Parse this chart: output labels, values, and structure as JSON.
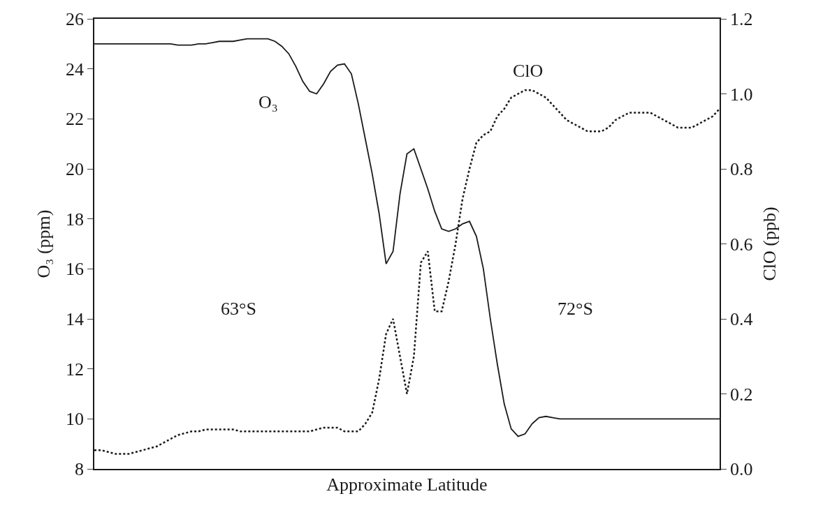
{
  "chart_data": {
    "type": "line",
    "xlabel": "Approximate Latitude",
    "ylabel": "O₃ (ppm)",
    "y2label": "ClO (ppb)",
    "categories": [
      null,
      null,
      null,
      null,
      null,
      null,
      null,
      null,
      null,
      null,
      null,
      null,
      null,
      null,
      null,
      null,
      null,
      null,
      null,
      null,
      null,
      null,
      null,
      null,
      null,
      null,
      null,
      null,
      null,
      null,
      null,
      null,
      null,
      null,
      null,
      null,
      null,
      null,
      null,
      null,
      null,
      null,
      null,
      null,
      null,
      null,
      null,
      null,
      null,
      null,
      null,
      null,
      null,
      null,
      null,
      null,
      null,
      null,
      null,
      null,
      null,
      null,
      null,
      null,
      null,
      null,
      null,
      null,
      null,
      null,
      null,
      null,
      null,
      null,
      null,
      null,
      null,
      null,
      null,
      null,
      null,
      null,
      null,
      null,
      null,
      null,
      null,
      null,
      null,
      null,
      null
    ],
    "series": [
      {
        "name": "O₃",
        "color": "#1a1a1a",
        "line_style": "solid",
        "values": [
          25.0,
          25.0,
          25.0,
          25.0,
          25.0,
          25.0,
          25.0,
          25.0,
          25.0,
          25.0,
          25.0,
          25.0,
          24.95,
          24.95,
          24.95,
          25.0,
          25.0,
          25.05,
          25.1,
          25.1,
          25.1,
          25.15,
          25.2,
          25.2,
          25.2,
          25.2,
          25.1,
          24.9,
          24.6,
          24.1,
          23.5,
          23.1,
          23.0,
          23.4,
          23.9,
          24.15,
          24.2,
          23.8,
          22.6,
          21.2,
          19.8,
          18.2,
          16.2,
          16.7,
          19.0,
          20.6,
          20.8,
          20.0,
          19.2,
          18.3,
          17.6,
          17.5,
          17.6,
          17.8,
          17.9,
          17.3,
          16.0,
          14.0,
          12.2,
          10.6,
          9.6,
          9.3,
          9.4,
          9.8,
          10.05,
          10.1,
          10.05,
          10.0,
          10.0,
          10.0,
          10.0,
          10.0,
          10.0,
          10.0,
          10.0,
          10.0,
          10.0,
          10.0,
          10.0,
          10.0,
          10.0,
          10.0,
          10.0,
          10.0,
          10.0,
          10.0,
          10.0,
          10.0,
          10.0,
          10.0,
          10.0
        ]
      },
      {
        "name": "ClO",
        "color": "#1a1a1a",
        "line_style": "dotted",
        "axis": "y2",
        "values": [
          0.05,
          0.05,
          0.045,
          0.04,
          0.04,
          0.04,
          0.045,
          0.05,
          0.055,
          0.06,
          0.07,
          0.08,
          0.09,
          0.095,
          0.1,
          0.1,
          0.105,
          0.105,
          0.105,
          0.105,
          0.105,
          0.1,
          0.1,
          0.1,
          0.1,
          0.1,
          0.1,
          0.1,
          0.1,
          0.1,
          0.1,
          0.1,
          0.105,
          0.11,
          0.11,
          0.11,
          0.1,
          0.1,
          0.1,
          0.12,
          0.15,
          0.24,
          0.36,
          0.4,
          0.3,
          0.2,
          0.3,
          0.55,
          0.58,
          0.42,
          0.42,
          0.5,
          0.6,
          0.72,
          0.8,
          0.87,
          0.89,
          0.9,
          0.94,
          0.96,
          0.99,
          1.0,
          1.01,
          1.01,
          1.0,
          0.99,
          0.97,
          0.95,
          0.93,
          0.92,
          0.91,
          0.9,
          0.9,
          0.9,
          0.91,
          0.93,
          0.94,
          0.95,
          0.95,
          0.95,
          0.95,
          0.94,
          0.93,
          0.92,
          0.91,
          0.91,
          0.91,
          0.92,
          0.93,
          0.94,
          0.96
        ]
      }
    ],
    "ylim": [
      8,
      26
    ],
    "yticks": [
      8,
      10,
      12,
      14,
      16,
      18,
      20,
      22,
      24,
      26
    ],
    "y2lim": [
      0,
      1.2
    ],
    "y2ticks": [
      {
        "value": 0,
        "label": "0.0"
      },
      0.2,
      0.4,
      0.6,
      0.8,
      {
        "value": 1,
        "label": "1.0"
      },
      1.2
    ],
    "annotations": [
      "63°S",
      "72°S"
    ],
    "legend": false,
    "marker": "none"
  }
}
